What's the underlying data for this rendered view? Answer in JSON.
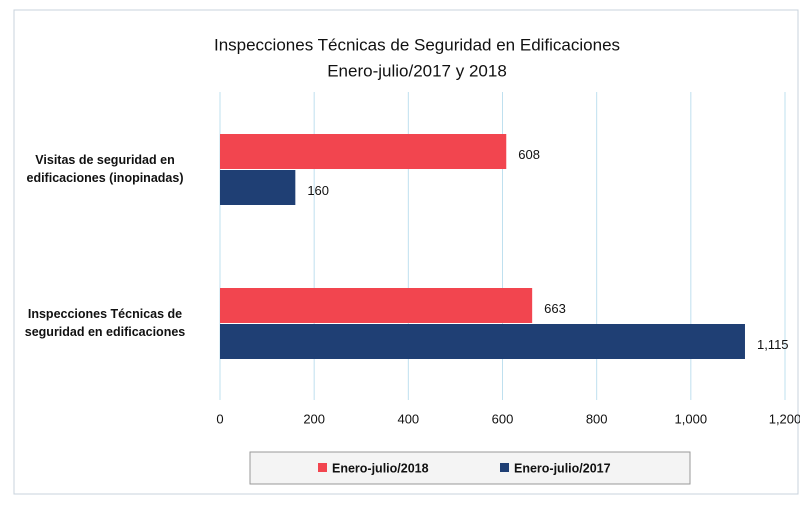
{
  "chart_data": {
    "type": "hbar",
    "title": "Inspecciones Técnicas de Seguridad en Edificaciones",
    "subtitle": "Enero-julio/2017 y 2018",
    "categories": [
      "Visitas de seguridad en edificaciones (inopinadas)",
      "Inspecciones Técnicas de seguridad en edificaciones"
    ],
    "series": [
      {
        "name": "Enero-julio/2018",
        "color": "#f2454f",
        "values": [
          608,
          663
        ]
      },
      {
        "name": "Enero-julio/2017",
        "color": "#1f3f74",
        "values": [
          160,
          1115
        ],
        "value_labels": [
          "160",
          "1,115"
        ]
      }
    ],
    "xlim": [
      0,
      1200
    ],
    "xticks": [
      0,
      200,
      400,
      600,
      800,
      {
        "value": 1000,
        "label": "1,000"
      },
      {
        "value": 1200,
        "label": "1,200"
      }
    ],
    "grid": true,
    "legend": "bottom"
  }
}
